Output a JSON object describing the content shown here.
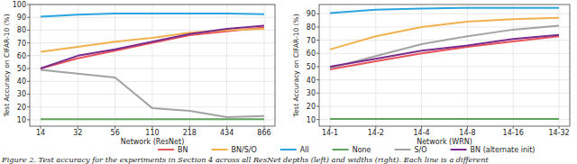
{
  "chart_data": [
    {
      "type": "line",
      "x_label": "Network (ResNet)",
      "y_label": "Test Accuracy on CIFAR-10 (%)",
      "categories": [
        "14",
        "32",
        "56",
        "110",
        "218",
        "434",
        "866"
      ],
      "ylim": [
        5,
        100
      ],
      "yticks": [
        10,
        20,
        30,
        40,
        50,
        60,
        70,
        80,
        90,
        100
      ],
      "grid": true,
      "legend": "bottom",
      "series": [
        {
          "name": "BN",
          "color": "#e8555c",
          "values": [
            50,
            58,
            64,
            70,
            76,
            79,
            82
          ]
        },
        {
          "name": "BN/S/O",
          "color": "#f2b14f",
          "values": [
            63,
            67,
            71,
            74,
            78,
            80,
            81
          ]
        },
        {
          "name": "All",
          "color": "#2ba4e0",
          "values": [
            90.5,
            92,
            93,
            93,
            93,
            93,
            92.5
          ]
        },
        {
          "name": "None",
          "color": "#5da35b",
          "values": [
            10.5,
            10.5,
            10.5,
            10.5,
            10.5,
            10.5,
            10.5
          ]
        },
        {
          "name": "S/O",
          "color": "#a3a3a3",
          "values": [
            49,
            46,
            43,
            19,
            17,
            12,
            13
          ]
        },
        {
          "name": "BN (alternate init)",
          "color": "#7a2c8c",
          "values": [
            50,
            60,
            65,
            71,
            77,
            81,
            83.5
          ]
        }
      ]
    },
    {
      "type": "line",
      "x_label": "Network (WRN)",
      "y_label": "Test Accuracy on CIFAR-10 (%)",
      "categories": [
        "14-1",
        "14-2",
        "14-4",
        "14-8",
        "14-16",
        "14-32"
      ],
      "ylim": [
        5,
        97
      ],
      "yticks": [
        10,
        20,
        30,
        40,
        50,
        60,
        70,
        80,
        90
      ],
      "grid": true,
      "series": [
        {
          "name": "BN",
          "color": "#e8555c",
          "values": [
            48,
            54,
            60,
            65,
            69,
            73
          ]
        },
        {
          "name": "BN/S/O",
          "color": "#f2b14f",
          "values": [
            63,
            73,
            80,
            84,
            86,
            87
          ]
        },
        {
          "name": "All",
          "color": "#2ba4e0",
          "values": [
            90.5,
            93,
            94,
            94.5,
            94.5,
            94.5
          ]
        },
        {
          "name": "None",
          "color": "#5da35b",
          "values": [
            10.5,
            10.5,
            10.5,
            10.5,
            10.5,
            10.5
          ]
        },
        {
          "name": "S/O",
          "color": "#a3a3a3",
          "values": [
            49,
            58,
            67,
            73,
            78,
            81
          ]
        },
        {
          "name": "BN (alternate init)",
          "color": "#7a2c8c",
          "values": [
            50,
            56,
            62,
            66,
            71,
            74
          ]
        }
      ]
    }
  ],
  "caption": "Figure 2. Test accuracy for the experiments in Section 4 across all ResNet depths (left) and widths (right). Each line is a different"
}
